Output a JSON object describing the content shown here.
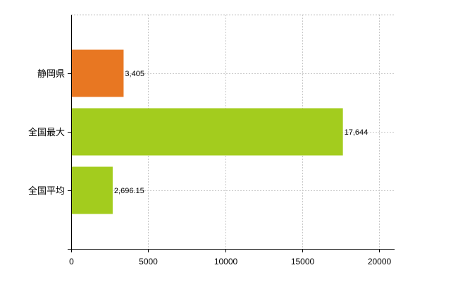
{
  "chart_data": {
    "type": "bar",
    "orientation": "horizontal",
    "categories": [
      "静岡県",
      "全国最大",
      "全国平均"
    ],
    "values": [
      3405,
      17644,
      2696.15
    ],
    "data_labels": [
      "3,405",
      "17,644",
      "2,696.15"
    ],
    "colors": [
      "#e87722",
      "#a3cc1e",
      "#a3cc1e"
    ],
    "xlim": [
      0,
      21000
    ],
    "xticks": [
      0,
      5000,
      10000,
      15000,
      20000
    ],
    "xtick_labels": [
      "0",
      "5000",
      "10000",
      "15000",
      "20000"
    ],
    "grid": true,
    "legend": "none"
  }
}
